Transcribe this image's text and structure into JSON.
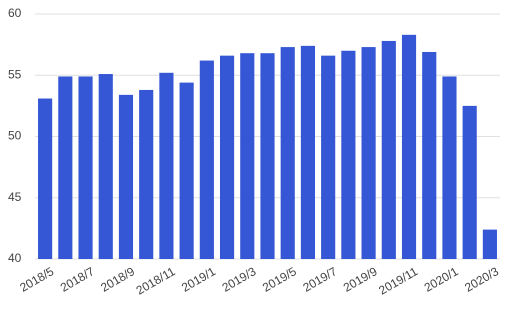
{
  "chart_data": {
    "type": "bar",
    "categories": [
      "2018/5",
      null,
      "2018/7",
      null,
      "2018/9",
      null,
      "2018/11",
      null,
      "2019/1",
      null,
      "2019/3",
      null,
      "2019/5",
      null,
      "2019/7",
      null,
      "2019/9",
      null,
      "2019/11",
      null,
      "2020/1",
      null,
      "2020/3"
    ],
    "values": [
      53.1,
      54.9,
      54.9,
      55.1,
      53.4,
      53.8,
      55.2,
      54.4,
      56.2,
      56.6,
      56.8,
      56.8,
      57.3,
      57.4,
      56.6,
      57.0,
      57.3,
      57.8,
      58.3,
      56.9,
      54.9,
      52.5,
      42.4
    ],
    "color": "#3557d6",
    "ylim": [
      40,
      60
    ],
    "yticks": [
      40,
      45,
      50,
      55,
      60
    ],
    "grid": true
  }
}
